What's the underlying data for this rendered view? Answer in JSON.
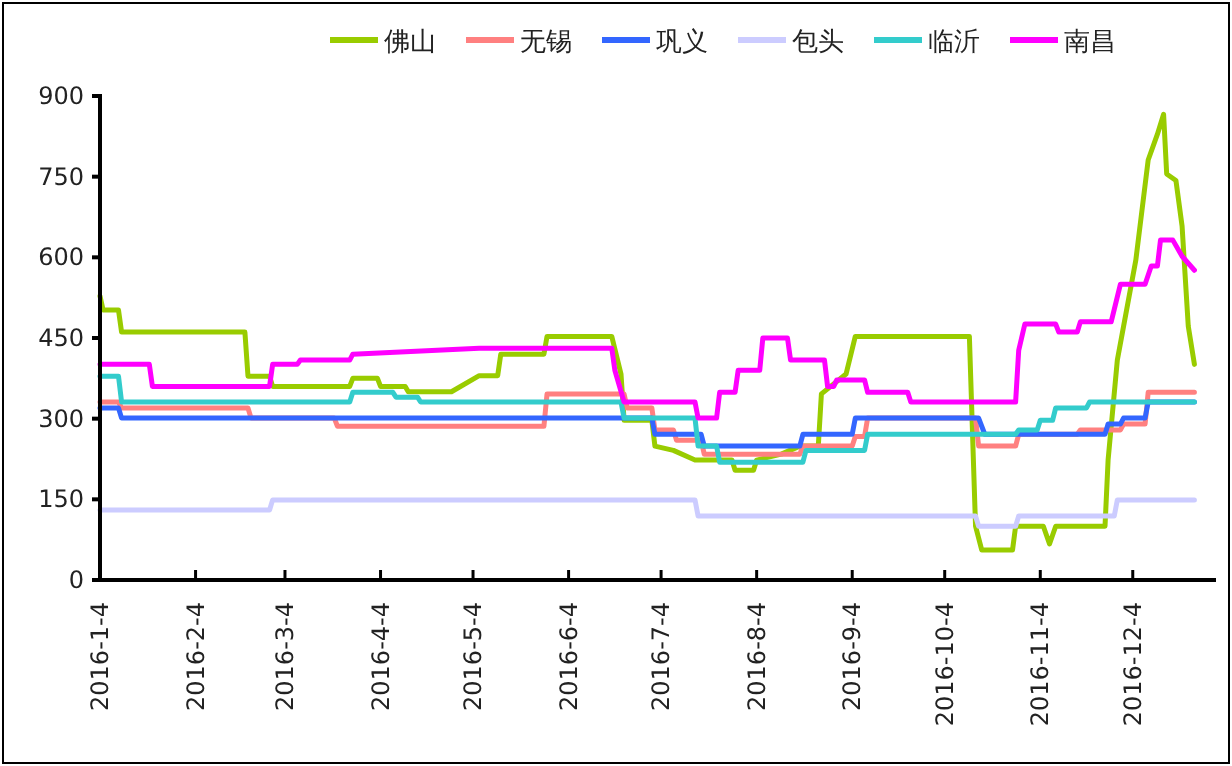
{
  "chart_data": {
    "type": "line",
    "legend": "top",
    "grid": false,
    "xlim": [
      "2016-01-04",
      "2016-12-31"
    ],
    "xticks": [
      {
        "value": "2016-01-04",
        "label": "2016-1-4"
      },
      {
        "value": "2016-02-04",
        "label": "2016-2-4"
      },
      {
        "value": "2016-03-04",
        "label": "2016-3-4"
      },
      {
        "value": "2016-04-04",
        "label": "2016-4-4"
      },
      {
        "value": "2016-05-04",
        "label": "2016-5-4"
      },
      {
        "value": "2016-06-04",
        "label": "2016-6-4"
      },
      {
        "value": "2016-07-04",
        "label": "2016-7-4"
      },
      {
        "value": "2016-08-04",
        "label": "2016-8-4"
      },
      {
        "value": "2016-09-04",
        "label": "2016-9-4"
      },
      {
        "value": "2016-10-04",
        "label": "2016-10-4"
      },
      {
        "value": "2016-11-04",
        "label": "2016-11-4"
      },
      {
        "value": "2016-12-04",
        "label": "2016-12-4"
      }
    ],
    "ylim": [
      0,
      900
    ],
    "yticks": [
      0,
      150,
      300,
      450,
      600,
      750,
      900
    ],
    "series": [
      {
        "name": "佛山",
        "color": "#99cc00",
        "x": [
          "2016-01-04",
          "2016-01-05",
          "2016-01-10",
          "2016-01-11",
          "2016-02-20",
          "2016-02-21",
          "2016-02-28",
          "2016-02-29",
          "2016-03-25",
          "2016-03-26",
          "2016-04-03",
          "2016-04-04",
          "2016-04-12",
          "2016-04-13",
          "2016-04-27",
          "2016-05-06",
          "2016-05-12",
          "2016-05-13",
          "2016-05-27",
          "2016-05-28",
          "2016-06-18",
          "2016-06-21",
          "2016-06-22",
          "2016-07-01",
          "2016-07-02",
          "2016-07-08",
          "2016-07-15",
          "2016-07-27",
          "2016-07-28",
          "2016-08-03",
          "2016-08-04",
          "2016-08-12",
          "2016-08-18",
          "2016-08-24",
          "2016-08-25",
          "2016-09-02",
          "2016-09-05",
          "2016-10-12",
          "2016-10-14",
          "2016-10-16",
          "2016-10-26",
          "2016-10-27",
          "2016-11-05",
          "2016-11-07",
          "2016-11-09",
          "2016-11-25",
          "2016-11-26",
          "2016-11-29",
          "2016-12-05",
          "2016-12-09",
          "2016-12-12",
          "2016-12-14",
          "2016-12-15",
          "2016-12-18",
          "2016-12-20",
          "2016-12-22",
          "2016-12-24"
        ],
        "values": [
          528,
          502,
          502,
          461,
          461,
          379,
          379,
          360,
          360,
          375,
          375,
          360,
          360,
          350,
          350,
          380,
          380,
          420,
          420,
          453,
          453,
          383,
          297,
          297,
          249,
          241,
          223,
          223,
          204,
          204,
          223,
          234,
          249,
          249,
          346,
          383,
          453,
          453,
          100,
          56,
          56,
          100,
          100,
          67,
          100,
          100,
          223,
          409,
          595,
          781,
          829,
          866,
          755,
          743,
          658,
          472,
          401
        ]
      },
      {
        "name": "无锡",
        "color": "#ff8080",
        "x": [
          "2016-01-04",
          "2016-01-10",
          "2016-01-11",
          "2016-02-21",
          "2016-02-22",
          "2016-03-20",
          "2016-03-21",
          "2016-05-27",
          "2016-05-28",
          "2016-06-22",
          "2016-06-23",
          "2016-07-01",
          "2016-07-02",
          "2016-07-08",
          "2016-07-09",
          "2016-07-17",
          "2016-07-18",
          "2016-08-18",
          "2016-08-19",
          "2016-09-04",
          "2016-09-05",
          "2016-09-08",
          "2016-09-09",
          "2016-10-14",
          "2016-10-15",
          "2016-10-27",
          "2016-10-28",
          "2016-11-16",
          "2016-11-17",
          "2016-11-30",
          "2016-12-01",
          "2016-12-08",
          "2016-12-09",
          "2016-12-24"
        ],
        "values": [
          331,
          331,
          320,
          320,
          301,
          301,
          286,
          286,
          346,
          346,
          320,
          320,
          279,
          279,
          260,
          260,
          234,
          234,
          249,
          249,
          267,
          267,
          301,
          301,
          249,
          249,
          271,
          271,
          279,
          279,
          290,
          290,
          349,
          349
        ]
      },
      {
        "name": "巩义",
        "color": "#3366ff",
        "x": [
          "2016-01-04",
          "2016-01-10",
          "2016-01-11",
          "2016-07-01",
          "2016-07-02",
          "2016-07-17",
          "2016-07-18",
          "2016-08-18",
          "2016-08-19",
          "2016-09-04",
          "2016-09-05",
          "2016-10-15",
          "2016-10-17",
          "2016-11-25",
          "2016-11-26",
          "2016-11-30",
          "2016-12-01",
          "2016-12-08",
          "2016-12-09",
          "2016-12-24"
        ],
        "values": [
          320,
          320,
          301,
          301,
          271,
          271,
          249,
          249,
          271,
          271,
          301,
          301,
          271,
          271,
          290,
          290,
          301,
          301,
          331,
          331
        ]
      },
      {
        "name": "包头",
        "color": "#ccccff",
        "x": [
          "2016-01-04",
          "2016-02-28",
          "2016-02-29",
          "2016-07-15",
          "2016-07-16",
          "2016-10-14",
          "2016-10-15",
          "2016-10-27",
          "2016-10-28",
          "2016-11-28",
          "2016-11-29",
          "2016-12-24"
        ],
        "values": [
          130,
          130,
          149,
          149,
          119,
          119,
          100,
          100,
          119,
          119,
          149,
          149
        ]
      },
      {
        "name": "临沂",
        "color": "#33cccc",
        "x": [
          "2016-01-04",
          "2016-01-10",
          "2016-01-11",
          "2016-03-25",
          "2016-03-26",
          "2016-04-08",
          "2016-04-09",
          "2016-04-16",
          "2016-04-17",
          "2016-06-21",
          "2016-06-22",
          "2016-07-15",
          "2016-07-16",
          "2016-07-22",
          "2016-07-23",
          "2016-08-19",
          "2016-08-20",
          "2016-09-08",
          "2016-09-09",
          "2016-10-27",
          "2016-10-28",
          "2016-11-03",
          "2016-11-04",
          "2016-11-08",
          "2016-11-09",
          "2016-11-19",
          "2016-11-20",
          "2016-12-24"
        ],
        "values": [
          379,
          379,
          331,
          331,
          349,
          349,
          340,
          340,
          331,
          331,
          301,
          301,
          249,
          249,
          219,
          219,
          241,
          241,
          271,
          271,
          279,
          279,
          297,
          297,
          320,
          320,
          331,
          331
        ]
      },
      {
        "name": "南昌",
        "color": "#ff00ff",
        "x": [
          "2016-01-04",
          "2016-01-20",
          "2016-01-21",
          "2016-02-28",
          "2016-02-29",
          "2016-03-08",
          "2016-03-09",
          "2016-03-25",
          "2016-03-26",
          "2016-05-06",
          "2016-06-18",
          "2016-06-19",
          "2016-06-22",
          "2016-07-15",
          "2016-07-16",
          "2016-07-22",
          "2016-07-23",
          "2016-07-28",
          "2016-07-29",
          "2016-08-05",
          "2016-08-06",
          "2016-08-14",
          "2016-08-15",
          "2016-08-26",
          "2016-08-27",
          "2016-08-29",
          "2016-08-30",
          "2016-09-08",
          "2016-09-09",
          "2016-09-22",
          "2016-09-23",
          "2016-10-27",
          "2016-10-28",
          "2016-10-30",
          "2016-11-09",
          "2016-11-10",
          "2016-11-16",
          "2016-11-17",
          "2016-11-27",
          "2016-11-30",
          "2016-12-08",
          "2016-12-10",
          "2016-12-12",
          "2016-12-13",
          "2016-12-17",
          "2016-12-20",
          "2016-12-24"
        ],
        "values": [
          401,
          401,
          360,
          360,
          401,
          401,
          409,
          409,
          420,
          431,
          431,
          390,
          331,
          331,
          301,
          301,
          349,
          349,
          390,
          390,
          450,
          450,
          409,
          409,
          360,
          360,
          372,
          372,
          349,
          349,
          331,
          331,
          427,
          476,
          476,
          461,
          461,
          480,
          480,
          550,
          550,
          584,
          584,
          632,
          632,
          602,
          576
        ]
      }
    ]
  }
}
